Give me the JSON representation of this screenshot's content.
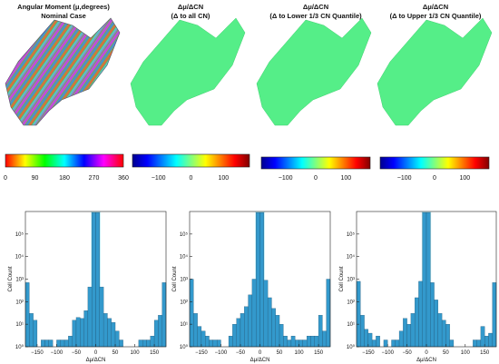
{
  "panels": [
    {
      "title": "Angular Moment (μ,degrees)",
      "subtitle": "Nominal Case",
      "colorbar": {
        "scheme": "hsv",
        "ticks": [
          "0",
          "90",
          "180",
          "270",
          "360"
        ],
        "range": [
          0,
          360
        ]
      }
    },
    {
      "title": "Δμ/ΔCN",
      "subtitle": "(Δ to all CN)",
      "colorbar": {
        "scheme": "jet",
        "ticks": [
          "-100",
          "0",
          "100"
        ],
        "range": [
          -180,
          180
        ]
      }
    },
    {
      "title": "Δμ/ΔCN",
      "subtitle": "(Δ to Lower 1/3 CN Quantile)",
      "colorbar": {
        "scheme": "jet",
        "ticks": [
          "-100",
          "0",
          "100"
        ],
        "range": [
          -180,
          180
        ]
      }
    },
    {
      "title": "Δμ/ΔCN",
      "subtitle": "(Δ to Upper 1/3 CN Quantile)",
      "colorbar": {
        "scheme": "jet",
        "ticks": [
          "-100",
          "0",
          "100"
        ],
        "range": [
          -180,
          180
        ]
      }
    }
  ],
  "map_fill_color": "#55ee88",
  "bar_color": "#3399cc",
  "chart_data": [
    {
      "type": "bar",
      "xlabel": "Δμ/ΔCN",
      "ylabel": "Cell Count",
      "xlim": [
        -180,
        180
      ],
      "ylim": [
        1,
        1000000
      ],
      "yscale": "log",
      "xticks": [
        -150,
        -100,
        -50,
        0,
        50,
        100,
        150
      ],
      "yticks": [
        1,
        10,
        100,
        1000,
        10000,
        100000
      ],
      "bin_width": 10,
      "bin_centers": [
        -175,
        -165,
        -155,
        -145,
        -135,
        -125,
        -115,
        -105,
        -95,
        -85,
        -75,
        -65,
        -55,
        -45,
        -35,
        -25,
        -15,
        -5,
        5,
        15,
        25,
        35,
        45,
        55,
        65,
        75,
        85,
        95,
        105,
        115,
        125,
        135,
        145,
        155,
        165,
        175
      ],
      "values": [
        700,
        30,
        15,
        1,
        2,
        2,
        2,
        1,
        2,
        2,
        2,
        3,
        15,
        20,
        18,
        40,
        450,
        900000,
        900000,
        450,
        30,
        18,
        12,
        5,
        2,
        1,
        1,
        1,
        1,
        2,
        2,
        2,
        3,
        15,
        25,
        700
      ]
    },
    {
      "type": "bar",
      "xlabel": "Δμ/ΔCN",
      "ylabel": "Cell Count",
      "xlim": [
        -180,
        180
      ],
      "ylim": [
        1,
        1000000
      ],
      "yscale": "log",
      "xticks": [
        -150,
        -100,
        -50,
        0,
        50,
        100,
        150
      ],
      "yticks": [
        1,
        10,
        100,
        1000,
        10000,
        100000
      ],
      "bin_width": 10,
      "bin_centers": [
        -175,
        -165,
        -155,
        -145,
        -135,
        -125,
        -115,
        -105,
        -95,
        -85,
        -75,
        -65,
        -55,
        -45,
        -35,
        -25,
        -15,
        -5,
        5,
        15,
        25,
        35,
        45,
        55,
        65,
        75,
        85,
        95,
        105,
        115,
        125,
        135,
        145,
        155,
        165,
        175
      ],
      "values": [
        1000,
        30,
        8,
        5,
        3,
        2,
        2,
        2,
        1,
        1,
        3,
        10,
        18,
        30,
        60,
        200,
        1000,
        900000,
        900000,
        900,
        150,
        50,
        25,
        10,
        3,
        2,
        3,
        2,
        2,
        2,
        3,
        3,
        3,
        25,
        5,
        1000
      ]
    },
    {
      "type": "bar",
      "xlabel": "Δμ/ΔCN",
      "ylabel": "Cell Count",
      "xlim": [
        -180,
        180
      ],
      "ylim": [
        1,
        1000000
      ],
      "yscale": "log",
      "xticks": [
        -150,
        -100,
        -50,
        0,
        50,
        100,
        150
      ],
      "yticks": [
        1,
        10,
        100,
        1000,
        10000,
        100000
      ],
      "bin_width": 10,
      "bin_centers": [
        -175,
        -165,
        -155,
        -145,
        -135,
        -125,
        -115,
        -105,
        -95,
        -85,
        -75,
        -65,
        -55,
        -45,
        -35,
        -25,
        -15,
        -5,
        5,
        15,
        25,
        35,
        45,
        55,
        65,
        75,
        85,
        95,
        105,
        115,
        125,
        135,
        145,
        155,
        165,
        175
      ],
      "values": [
        800,
        25,
        6,
        4,
        2,
        3,
        1,
        2,
        1,
        2,
        2,
        5,
        18,
        10,
        30,
        150,
        800,
        900000,
        900000,
        700,
        120,
        30,
        15,
        10,
        2,
        1,
        1,
        1,
        1,
        1,
        2,
        2,
        8,
        3,
        4,
        700
      ]
    }
  ]
}
